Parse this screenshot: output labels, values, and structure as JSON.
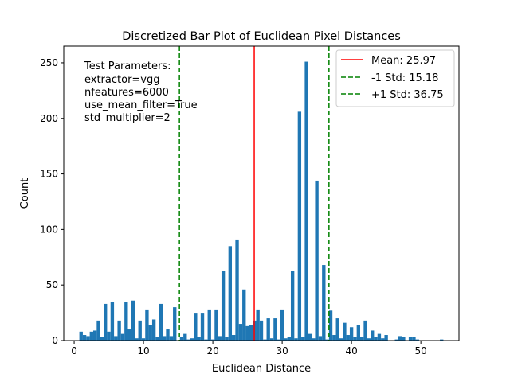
{
  "chart_data": {
    "type": "bar",
    "title": "Discretized Bar Plot of Euclidean Pixel Distances",
    "xlabel": "Euclidean Distance",
    "ylabel": "Count",
    "xlim": [
      -1.5,
      55.5
    ],
    "ylim": [
      0,
      265
    ],
    "xticks": [
      0,
      10,
      20,
      30,
      40,
      50
    ],
    "yticks": [
      0,
      50,
      100,
      150,
      200,
      250
    ],
    "bar_color": "#1f77b4",
    "bar_width": 0.5,
    "bars": [
      {
        "x": 1,
        "count": 8
      },
      {
        "x": 1.5,
        "count": 5
      },
      {
        "x": 2,
        "count": 4
      },
      {
        "x": 2.5,
        "count": 8
      },
      {
        "x": 3,
        "count": 9
      },
      {
        "x": 3.5,
        "count": 18
      },
      {
        "x": 4,
        "count": 3
      },
      {
        "x": 4.5,
        "count": 33
      },
      {
        "x": 5,
        "count": 8
      },
      {
        "x": 5.5,
        "count": 35
      },
      {
        "x": 6,
        "count": 4
      },
      {
        "x": 6.5,
        "count": 18
      },
      {
        "x": 7,
        "count": 6
      },
      {
        "x": 7.5,
        "count": 35
      },
      {
        "x": 8,
        "count": 10
      },
      {
        "x": 8.5,
        "count": 36
      },
      {
        "x": 9,
        "count": 2
      },
      {
        "x": 9.5,
        "count": 18
      },
      {
        "x": 10,
        "count": 2
      },
      {
        "x": 10.5,
        "count": 28
      },
      {
        "x": 11,
        "count": 14
      },
      {
        "x": 11.5,
        "count": 19
      },
      {
        "x": 12,
        "count": 3
      },
      {
        "x": 12.5,
        "count": 33
      },
      {
        "x": 13,
        "count": 4
      },
      {
        "x": 13.5,
        "count": 10
      },
      {
        "x": 14,
        "count": 4
      },
      {
        "x": 14.5,
        "count": 30
      },
      {
        "x": 15.5,
        "count": 3
      },
      {
        "x": 16,
        "count": 6
      },
      {
        "x": 16.5,
        "count": 1
      },
      {
        "x": 17,
        "count": 2
      },
      {
        "x": 17.5,
        "count": 25
      },
      {
        "x": 18,
        "count": 3
      },
      {
        "x": 18.5,
        "count": 25
      },
      {
        "x": 19,
        "count": 1
      },
      {
        "x": 19.5,
        "count": 28
      },
      {
        "x": 20,
        "count": 1
      },
      {
        "x": 20.5,
        "count": 28
      },
      {
        "x": 21,
        "count": 4
      },
      {
        "x": 21.5,
        "count": 63
      },
      {
        "x": 22,
        "count": 3
      },
      {
        "x": 22.5,
        "count": 85
      },
      {
        "x": 23,
        "count": 5
      },
      {
        "x": 23.5,
        "count": 91
      },
      {
        "x": 24,
        "count": 15
      },
      {
        "x": 24.5,
        "count": 46
      },
      {
        "x": 25,
        "count": 13
      },
      {
        "x": 25.5,
        "count": 14
      },
      {
        "x": 26,
        "count": 18
      },
      {
        "x": 26.5,
        "count": 28
      },
      {
        "x": 27,
        "count": 18
      },
      {
        "x": 27.5,
        "count": 1
      },
      {
        "x": 28,
        "count": 20
      },
      {
        "x": 28.5,
        "count": 2
      },
      {
        "x": 29,
        "count": 20
      },
      {
        "x": 29.5,
        "count": 1
      },
      {
        "x": 30,
        "count": 28
      },
      {
        "x": 30.5,
        "count": 2
      },
      {
        "x": 31,
        "count": 3
      },
      {
        "x": 31.5,
        "count": 63
      },
      {
        "x": 32,
        "count": 2
      },
      {
        "x": 32.5,
        "count": 206
      },
      {
        "x": 33,
        "count": 3
      },
      {
        "x": 33.5,
        "count": 251
      },
      {
        "x": 34,
        "count": 6
      },
      {
        "x": 34.5,
        "count": 2
      },
      {
        "x": 35,
        "count": 144
      },
      {
        "x": 35.5,
        "count": 4
      },
      {
        "x": 36,
        "count": 68
      },
      {
        "x": 36.5,
        "count": 1
      },
      {
        "x": 37,
        "count": 27
      },
      {
        "x": 37.5,
        "count": 5
      },
      {
        "x": 38,
        "count": 20
      },
      {
        "x": 38.5,
        "count": 2
      },
      {
        "x": 39,
        "count": 16
      },
      {
        "x": 39.5,
        "count": 5
      },
      {
        "x": 40,
        "count": 12
      },
      {
        "x": 40.5,
        "count": 3
      },
      {
        "x": 41,
        "count": 14
      },
      {
        "x": 41.5,
        "count": 3
      },
      {
        "x": 42,
        "count": 18
      },
      {
        "x": 42.5,
        "count": 2
      },
      {
        "x": 43,
        "count": 9
      },
      {
        "x": 43.5,
        "count": 3
      },
      {
        "x": 44,
        "count": 6
      },
      {
        "x": 44.5,
        "count": 2
      },
      {
        "x": 45,
        "count": 5
      },
      {
        "x": 46.5,
        "count": 1
      },
      {
        "x": 47,
        "count": 4
      },
      {
        "x": 47.5,
        "count": 3
      },
      {
        "x": 48.5,
        "count": 3
      },
      {
        "x": 49,
        "count": 3
      },
      {
        "x": 49.5,
        "count": 1
      },
      {
        "x": 53,
        "count": 1
      }
    ],
    "reference_lines": [
      {
        "label": "Mean: 25.97",
        "x": 25.97,
        "color": "#ff0000",
        "style": "solid"
      },
      {
        "label": "-1 Std: 15.18",
        "x": 15.18,
        "color": "#008000",
        "style": "dashed"
      },
      {
        "label": "+1 Std: 36.75",
        "x": 36.75,
        "color": "#008000",
        "style": "dashed"
      }
    ],
    "annotation": [
      "Test Parameters:",
      "extractor=vgg",
      "nfeatures=6000",
      "use_mean_filter=True",
      "std_multiplier=2"
    ],
    "legend_position": "top-right",
    "grid": false
  }
}
